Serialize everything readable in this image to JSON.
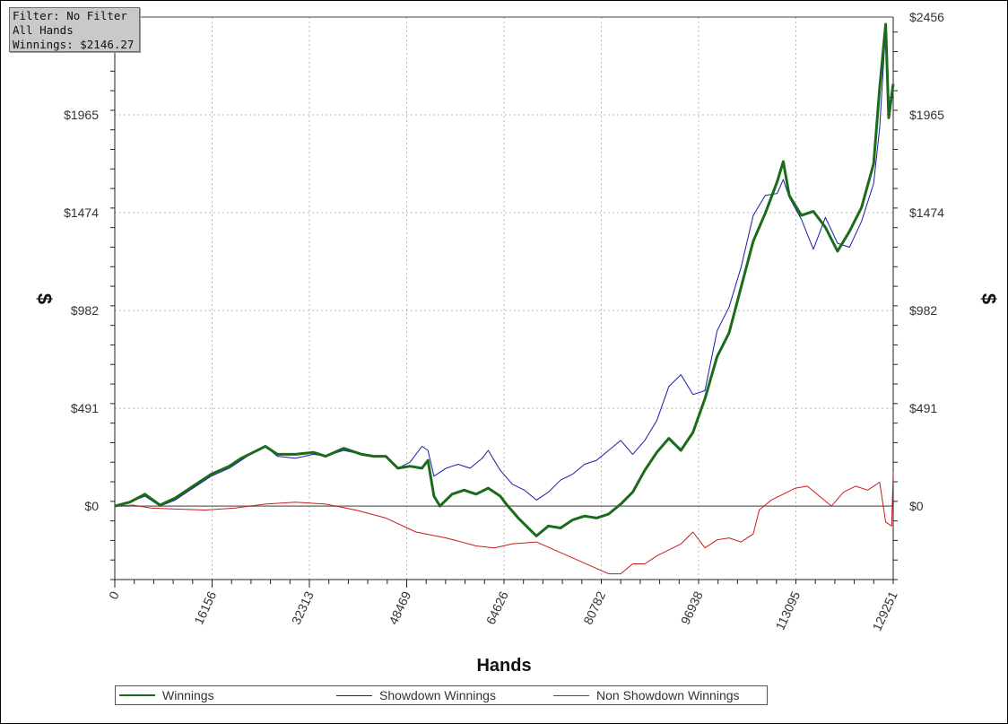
{
  "info_box": {
    "filter": "Filter: No Filter",
    "hands": "All Hands",
    "winnings": "Winnings: $2146.27"
  },
  "legend": [
    {
      "label": "Winnings",
      "color": "#1a6b1a"
    },
    {
      "label": "Showdown Winnings",
      "color": "#1a1aa8"
    },
    {
      "label": "Non Showdown Winnings",
      "color": "#cc1a1a"
    }
  ],
  "chart_data": {
    "type": "line",
    "xlabel": "Hands",
    "ylabel": "$",
    "xlim": [
      0,
      129251
    ],
    "ylim": [
      -369,
      2456
    ],
    "x_ticks": [
      0,
      16156,
      32313,
      48469,
      64626,
      80782,
      96938,
      113095,
      129251
    ],
    "y_ticks": [
      0,
      491,
      982,
      1474,
      1965,
      2456
    ],
    "y_tick_labels": [
      "$0",
      "$491",
      "$982",
      "$1474",
      "$1965",
      "$2456"
    ],
    "grid": true,
    "legend_position": "bottom",
    "series": [
      {
        "name": "Winnings",
        "color": "#1a6b1a",
        "points": [
          [
            0,
            0
          ],
          [
            2500,
            20
          ],
          [
            5000,
            60
          ],
          [
            7500,
            5
          ],
          [
            10000,
            40
          ],
          [
            13000,
            100
          ],
          [
            16000,
            160
          ],
          [
            19000,
            200
          ],
          [
            21000,
            240
          ],
          [
            23000,
            270
          ],
          [
            25000,
            300
          ],
          [
            27000,
            260
          ],
          [
            30000,
            260
          ],
          [
            33000,
            270
          ],
          [
            35000,
            250
          ],
          [
            38000,
            290
          ],
          [
            41000,
            260
          ],
          [
            43000,
            250
          ],
          [
            45000,
            250
          ],
          [
            47000,
            190
          ],
          [
            49000,
            200
          ],
          [
            51000,
            190
          ],
          [
            52000,
            230
          ],
          [
            53000,
            50
          ],
          [
            54000,
            0
          ],
          [
            56000,
            60
          ],
          [
            58000,
            80
          ],
          [
            60000,
            60
          ],
          [
            62000,
            90
          ],
          [
            64000,
            50
          ],
          [
            65000,
            10
          ],
          [
            67000,
            -60
          ],
          [
            70000,
            -150
          ],
          [
            72000,
            -100
          ],
          [
            74000,
            -110
          ],
          [
            76000,
            -70
          ],
          [
            78000,
            -50
          ],
          [
            80000,
            -60
          ],
          [
            82000,
            -40
          ],
          [
            84000,
            10
          ],
          [
            86000,
            70
          ],
          [
            88000,
            180
          ],
          [
            90000,
            270
          ],
          [
            92000,
            340
          ],
          [
            94000,
            280
          ],
          [
            96000,
            370
          ],
          [
            98000,
            540
          ],
          [
            100000,
            750
          ],
          [
            102000,
            870
          ],
          [
            104000,
            1100
          ],
          [
            106000,
            1330
          ],
          [
            108000,
            1470
          ],
          [
            110000,
            1630
          ],
          [
            111000,
            1730
          ],
          [
            112000,
            1560
          ],
          [
            114000,
            1460
          ],
          [
            116000,
            1480
          ],
          [
            118000,
            1400
          ],
          [
            120000,
            1280
          ],
          [
            122000,
            1380
          ],
          [
            124000,
            1500
          ],
          [
            126000,
            1720
          ],
          [
            127000,
            2100
          ],
          [
            128000,
            2420
          ],
          [
            128500,
            1950
          ],
          [
            129251,
            2120
          ]
        ]
      },
      {
        "name": "Showdown Winnings",
        "color": "#1a1aa8",
        "points": [
          [
            0,
            0
          ],
          [
            2500,
            20
          ],
          [
            5000,
            50
          ],
          [
            7500,
            0
          ],
          [
            10000,
            30
          ],
          [
            13000,
            90
          ],
          [
            16000,
            150
          ],
          [
            19000,
            190
          ],
          [
            21000,
            230
          ],
          [
            23000,
            270
          ],
          [
            25000,
            300
          ],
          [
            27000,
            250
          ],
          [
            30000,
            240
          ],
          [
            33000,
            260
          ],
          [
            35000,
            250
          ],
          [
            38000,
            280
          ],
          [
            41000,
            260
          ],
          [
            43000,
            250
          ],
          [
            45000,
            250
          ],
          [
            47000,
            190
          ],
          [
            49000,
            220
          ],
          [
            51000,
            300
          ],
          [
            52000,
            280
          ],
          [
            53000,
            150
          ],
          [
            55000,
            190
          ],
          [
            57000,
            210
          ],
          [
            59000,
            190
          ],
          [
            61000,
            240
          ],
          [
            62000,
            280
          ],
          [
            64000,
            180
          ],
          [
            66000,
            110
          ],
          [
            68000,
            80
          ],
          [
            70000,
            30
          ],
          [
            72000,
            70
          ],
          [
            74000,
            130
          ],
          [
            76000,
            160
          ],
          [
            78000,
            210
          ],
          [
            80000,
            230
          ],
          [
            82000,
            280
          ],
          [
            84000,
            330
          ],
          [
            86000,
            260
          ],
          [
            88000,
            330
          ],
          [
            90000,
            430
          ],
          [
            92000,
            600
          ],
          [
            94000,
            660
          ],
          [
            96000,
            560
          ],
          [
            98000,
            580
          ],
          [
            100000,
            880
          ],
          [
            102000,
            1000
          ],
          [
            104000,
            1200
          ],
          [
            106000,
            1460
          ],
          [
            108000,
            1560
          ],
          [
            110000,
            1570
          ],
          [
            111000,
            1640
          ],
          [
            112000,
            1550
          ],
          [
            114000,
            1440
          ],
          [
            116000,
            1290
          ],
          [
            118000,
            1450
          ],
          [
            120000,
            1320
          ],
          [
            122000,
            1300
          ],
          [
            124000,
            1430
          ],
          [
            126000,
            1620
          ],
          [
            127000,
            1900
          ],
          [
            128000,
            2400
          ],
          [
            128500,
            2050
          ],
          [
            129251,
            2060
          ]
        ]
      },
      {
        "name": "Non Showdown Winnings",
        "color": "#cc1a1a",
        "points": [
          [
            0,
            0
          ],
          [
            3000,
            5
          ],
          [
            6000,
            -10
          ],
          [
            10000,
            -15
          ],
          [
            15000,
            -20
          ],
          [
            20000,
            -10
          ],
          [
            25000,
            10
          ],
          [
            30000,
            20
          ],
          [
            35000,
            10
          ],
          [
            40000,
            -20
          ],
          [
            45000,
            -60
          ],
          [
            50000,
            -130
          ],
          [
            55000,
            -160
          ],
          [
            60000,
            -200
          ],
          [
            63000,
            -210
          ],
          [
            66000,
            -190
          ],
          [
            70000,
            -180
          ],
          [
            73000,
            -220
          ],
          [
            76000,
            -260
          ],
          [
            79000,
            -300
          ],
          [
            82000,
            -340
          ],
          [
            84000,
            -340
          ],
          [
            86000,
            -290
          ],
          [
            88000,
            -290
          ],
          [
            90000,
            -250
          ],
          [
            92000,
            -220
          ],
          [
            94000,
            -190
          ],
          [
            96000,
            -130
          ],
          [
            98000,
            -210
          ],
          [
            100000,
            -170
          ],
          [
            102000,
            -160
          ],
          [
            104000,
            -180
          ],
          [
            106000,
            -140
          ],
          [
            107000,
            -20
          ],
          [
            109000,
            30
          ],
          [
            111000,
            60
          ],
          [
            113000,
            90
          ],
          [
            115000,
            100
          ],
          [
            117000,
            50
          ],
          [
            119000,
            0
          ],
          [
            121000,
            70
          ],
          [
            123000,
            100
          ],
          [
            125000,
            80
          ],
          [
            127000,
            120
          ],
          [
            128000,
            -80
          ],
          [
            129000,
            -100
          ],
          [
            129251,
            170
          ]
        ]
      }
    ]
  }
}
